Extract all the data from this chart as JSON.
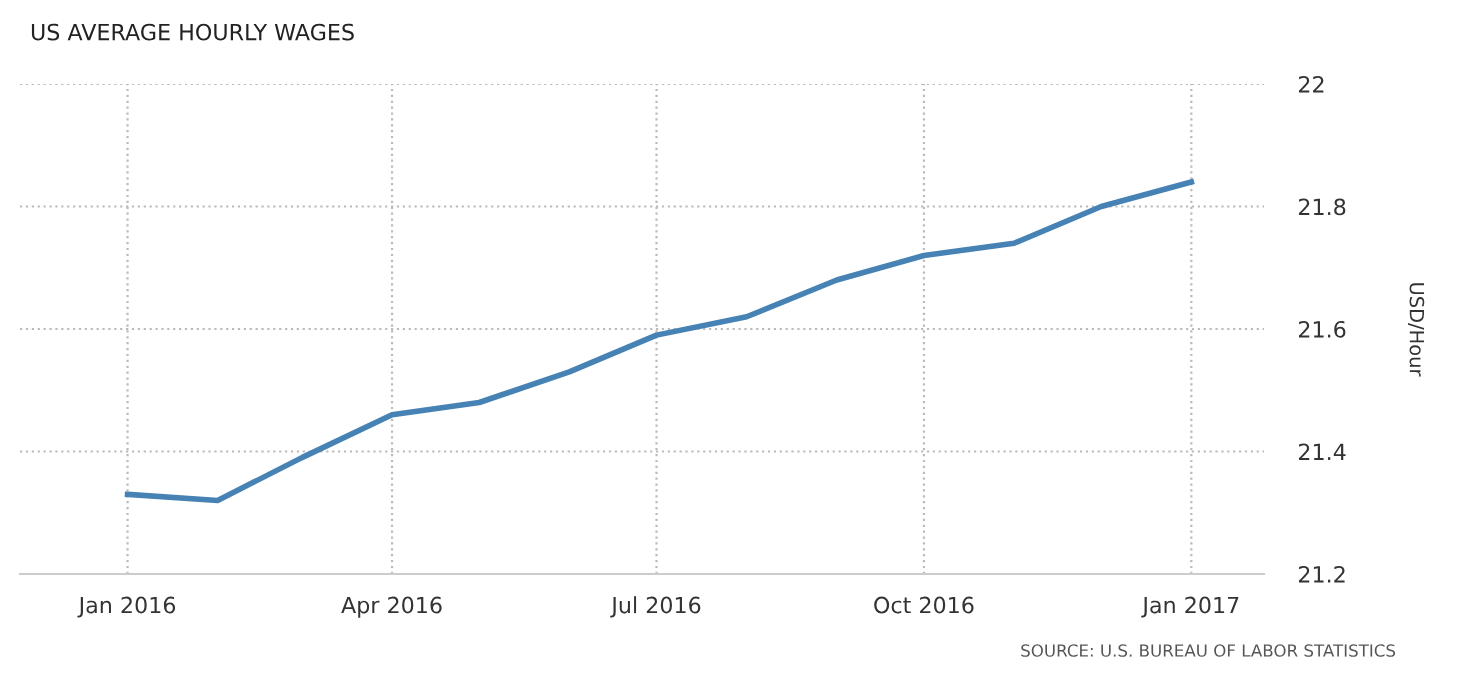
{
  "chart_data": {
    "type": "line",
    "title": "US AVERAGE HOURLY WAGES",
    "ylabel": "USD/Hour",
    "annotations": [
      "SOURCE: U.S. BUREAU OF LABOR STATISTICS"
    ],
    "x": [
      "2016-01",
      "2016-02",
      "2016-03",
      "2016-04",
      "2016-05",
      "2016-06",
      "2016-07",
      "2016-08",
      "2016-09",
      "2016-10",
      "2016-11",
      "2016-12",
      "2017-01"
    ],
    "series": [
      {
        "color": "#4682b4",
        "values": [
          21.33,
          21.32,
          21.39,
          21.46,
          21.48,
          21.53,
          21.59,
          21.62,
          21.68,
          21.72,
          21.74,
          21.8,
          21.84
        ]
      }
    ],
    "xlim": [
      "2015-11-25",
      "2017-01-26"
    ],
    "xticks": [
      {
        "value": "2016-01-01",
        "label": "Jan 2016"
      },
      {
        "value": "2016-04-01",
        "label": "Apr 2016"
      },
      {
        "value": "2016-07-01",
        "label": "Jul 2016"
      },
      {
        "value": "2016-10-01",
        "label": "Oct 2016"
      },
      {
        "value": "2017-01-01",
        "label": "Jan 2017"
      }
    ],
    "ylim": [
      21.2,
      22
    ],
    "yticks": [
      21.2,
      21.4,
      21.6,
      21.8,
      22
    ],
    "grid": true,
    "legend": false,
    "marker": "none",
    "line_style": "solid"
  }
}
